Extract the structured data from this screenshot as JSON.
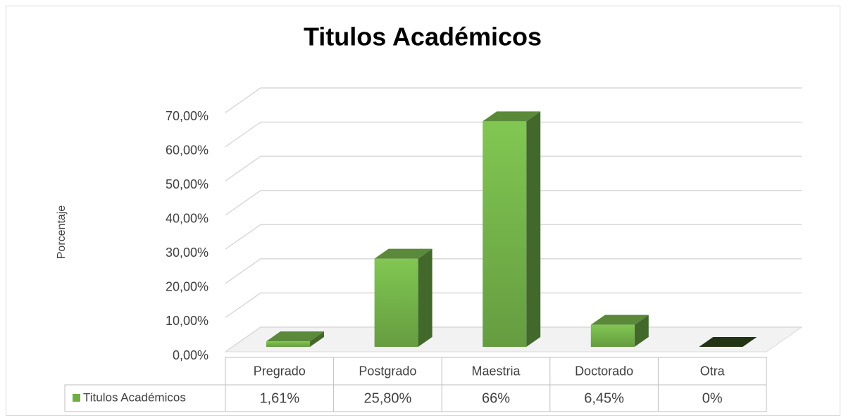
{
  "chart_data": {
    "type": "bar3d",
    "title": "Titulos Académicos",
    "y_axis_label": "Porcentaje",
    "categories": [
      "Pregrado",
      "Postgrado",
      "Maestria",
      "Doctorado",
      "Otra"
    ],
    "series": [
      {
        "name": "Titulos Académicos",
        "color": "#70ad47",
        "values": [
          1.61,
          25.8,
          66,
          6.45,
          0
        ],
        "value_labels": [
          "1,61%",
          "25,80%",
          "66%",
          "6,45%",
          "0%"
        ]
      }
    ],
    "ylim": [
      0,
      70
    ],
    "yticks": [
      {
        "value": 0,
        "label": "0,00%"
      },
      {
        "value": 10,
        "label": "10,00%"
      },
      {
        "value": 20,
        "label": "20,00%"
      },
      {
        "value": 30,
        "label": "30,00%"
      },
      {
        "value": 40,
        "label": "40,00%"
      },
      {
        "value": 50,
        "label": "50,00%"
      },
      {
        "value": 60,
        "label": "60,00%"
      },
      {
        "value": 70,
        "label": "70,00%"
      }
    ],
    "grid": true,
    "data_table": true
  }
}
